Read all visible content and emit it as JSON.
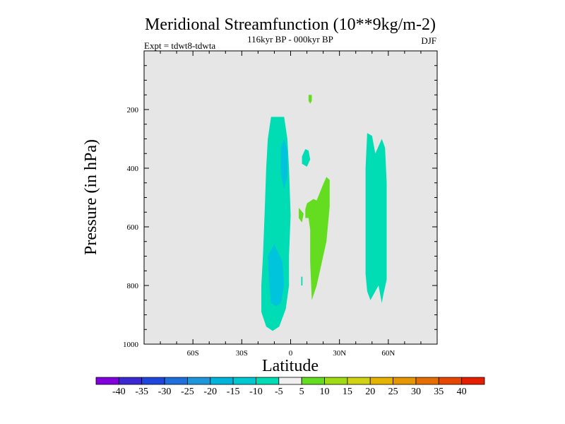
{
  "chart_data": {
    "type": "filled-contour",
    "title": "Meridional Streamfunction (10**9kg/m-2)",
    "subtitle": "116kyr BP - 000kyr BP",
    "left_label": "Expt = tdwt8-tdwta",
    "right_label": "DJF",
    "xlabel": "Latitude",
    "ylabel": "Pressure (in hPa)",
    "xlim": [
      -90,
      90
    ],
    "ylim": [
      1000,
      0
    ],
    "x_ticks": [
      {
        "value": -60,
        "label": "60S"
      },
      {
        "value": -30,
        "label": "30S"
      },
      {
        "value": 0,
        "label": "0"
      },
      {
        "value": 30,
        "label": "30N"
      },
      {
        "value": 60,
        "label": "60N"
      }
    ],
    "y_ticks": [
      {
        "value": 200,
        "label": "200"
      },
      {
        "value": 400,
        "label": "400"
      },
      {
        "value": 600,
        "label": "600"
      },
      {
        "value": 800,
        "label": "800"
      },
      {
        "value": 1000,
        "label": "1000"
      }
    ],
    "background_color": "#e6e6e6",
    "contour_regions": [
      {
        "name": "sh-negative-cell",
        "level": "-10 to -5",
        "color": "#00dcb4",
        "lat_p": [
          [
            -12,
            225
          ],
          [
            -4,
            225
          ],
          [
            -2,
            300
          ],
          [
            -1,
            400
          ],
          [
            0,
            560
          ],
          [
            -1,
            700
          ],
          [
            -1,
            800
          ],
          [
            -3,
            880
          ],
          [
            -7,
            940
          ],
          [
            -11,
            955
          ],
          [
            -15,
            940
          ],
          [
            -18,
            890
          ],
          [
            -18,
            800
          ],
          [
            -17,
            700
          ],
          [
            -16,
            560
          ],
          [
            -15,
            400
          ],
          [
            -14,
            300
          ]
        ]
      },
      {
        "name": "sh-core-left",
        "level": "-15 to -10",
        "color": "#00c3dc",
        "lat_p": [
          [
            -14,
            700
          ],
          [
            -10,
            660
          ],
          [
            -5,
            720
          ],
          [
            -4,
            800
          ],
          [
            -6,
            860
          ],
          [
            -9,
            870
          ],
          [
            -12,
            860
          ],
          [
            -13,
            800
          ]
        ]
      },
      {
        "name": "sh-core-upper",
        "level": "-15 to -10",
        "color": "#00c3dc",
        "lat_p": [
          [
            -6,
            330
          ],
          [
            -4,
            300
          ],
          [
            -2,
            340
          ],
          [
            -2,
            430
          ],
          [
            -4,
            470
          ],
          [
            -6,
            420
          ]
        ]
      },
      {
        "name": "upper-negative-blob",
        "level": "-10 to -5",
        "color": "#00dcb4",
        "lat_p": [
          [
            7,
            360
          ],
          [
            9,
            335
          ],
          [
            11,
            340
          ],
          [
            12,
            370
          ],
          [
            10,
            395
          ],
          [
            7,
            385
          ]
        ]
      },
      {
        "name": "upper-positive-blob",
        "level": "5 to 10",
        "color": "#64dc20",
        "lat_p": [
          [
            11,
            150
          ],
          [
            13,
            150
          ],
          [
            13,
            170
          ],
          [
            12,
            180
          ],
          [
            11,
            170
          ]
        ]
      },
      {
        "name": "positive-cell",
        "level": "5 to 10",
        "color": "#64dc20",
        "lat_p": [
          [
            10,
            520
          ],
          [
            14,
            505
          ],
          [
            16,
            510
          ],
          [
            20,
            455
          ],
          [
            22,
            430
          ],
          [
            24,
            440
          ],
          [
            24,
            530
          ],
          [
            22,
            650
          ],
          [
            18,
            750
          ],
          [
            16,
            800
          ],
          [
            13,
            850
          ],
          [
            12,
            720
          ],
          [
            12,
            610
          ],
          [
            11,
            570
          ],
          [
            9,
            570
          ],
          [
            9,
            540
          ]
        ]
      },
      {
        "name": "small-positive-blob",
        "level": "5 to 10",
        "color": "#64dc20",
        "lat_p": [
          [
            5,
            535
          ],
          [
            8,
            555
          ],
          [
            7,
            585
          ],
          [
            5,
            570
          ]
        ]
      },
      {
        "name": "nh-negative-cell",
        "level": "-10 to -5",
        "color": "#00dcb4",
        "lat_p": [
          [
            47,
            280
          ],
          [
            50,
            290
          ],
          [
            52,
            350
          ],
          [
            56,
            300
          ],
          [
            58,
            330
          ],
          [
            59,
            450
          ],
          [
            59,
            780
          ],
          [
            57,
            830
          ],
          [
            56,
            860
          ],
          [
            54,
            800
          ],
          [
            52,
            820
          ],
          [
            49,
            850
          ],
          [
            47,
            820
          ],
          [
            46,
            760
          ],
          [
            46,
            400
          ]
        ]
      },
      {
        "name": "tiny-negative-blob",
        "level": "-10 to -5",
        "color": "#00dcb4",
        "lat_p": [
          [
            6.5,
            770
          ],
          [
            7.3,
            770
          ],
          [
            7.3,
            800
          ],
          [
            6.5,
            800
          ]
        ]
      }
    ],
    "colorbar": {
      "labels": [
        "-40",
        "-35",
        "-30",
        "-25",
        "-20",
        "-15",
        "-10",
        "-5",
        "5",
        "10",
        "15",
        "20",
        "25",
        "30",
        "35",
        "40"
      ],
      "colors": [
        "#8200dc",
        "#3c28d2",
        "#1e46dc",
        "#1e6edc",
        "#1e96dc",
        "#00b4dc",
        "#00c8d2",
        "#00dcb4",
        "#f0f0f0",
        "#64dc20",
        "#a0dc14",
        "#d2d214",
        "#e6b400",
        "#e69600",
        "#e66e00",
        "#e64600",
        "#e61e00"
      ]
    }
  }
}
